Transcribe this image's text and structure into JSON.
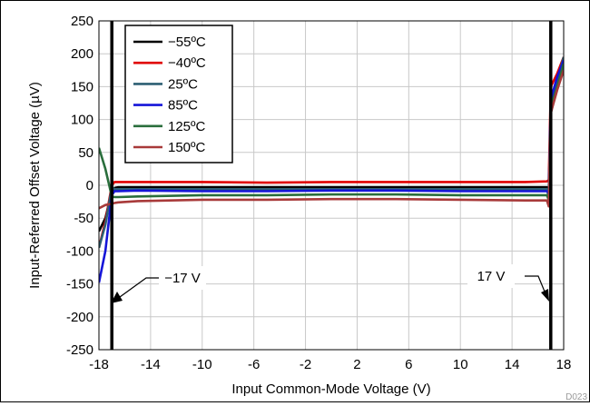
{
  "chart_data": {
    "type": "line",
    "title": "",
    "xlabel": "Input Common-Mode Voltage (V)",
    "ylabel": "Input-Referred Offset Voltage (µV)",
    "xlim": [
      -18,
      18
    ],
    "ylim": [
      -250,
      250
    ],
    "x_ticks": [
      "-18",
      "-14",
      "-10",
      "-6",
      "-2",
      "2",
      "6",
      "10",
      "14",
      "18"
    ],
    "x_tick_values": [
      -18,
      -14,
      -10,
      -6,
      -2,
      2,
      6,
      10,
      14,
      18
    ],
    "y_ticks": [
      "250",
      "200",
      "150",
      "100",
      "50",
      "0",
      "-50",
      "-100",
      "-150",
      "-200",
      "-250"
    ],
    "y_tick_values": [
      250,
      200,
      150,
      100,
      50,
      0,
      -50,
      -100,
      -150,
      -200,
      -250
    ],
    "grid": true,
    "legend_position": "top-left",
    "series": [
      {
        "name": "−55ºC",
        "color": "#000000",
        "x": [
          -18,
          -17.5,
          -17,
          -16.8,
          -16.5,
          -15,
          -10,
          -5,
          0,
          2,
          5,
          10,
          15,
          16.7,
          16.85,
          17,
          17.5,
          18
        ],
        "y": [
          -70,
          -50,
          -10,
          -4,
          -3,
          -3,
          -3,
          -3,
          -3,
          -3,
          -3,
          -3,
          -3,
          -3,
          -8,
          110,
          150,
          190
        ]
      },
      {
        "name": "−40ºC",
        "color": "#e00000",
        "x": [
          -18,
          -17.5,
          -17,
          -16.8,
          -16.5,
          -15,
          -10,
          -5,
          0,
          2,
          5,
          10,
          15,
          16.7,
          16.85,
          17,
          17.5,
          18
        ],
        "y": [
          -95,
          -55,
          0,
          5,
          5,
          5,
          5,
          4,
          5,
          5,
          5,
          5,
          5,
          6,
          8,
          150,
          170,
          195
        ]
      },
      {
        "name": "25ºC",
        "color": "#2d5f73",
        "x": [
          -18,
          -17.5,
          -17,
          -16.8,
          -16.5,
          -15,
          -10,
          -5,
          0,
          2,
          5,
          10,
          15,
          16.7,
          16.85,
          17,
          17.5,
          18
        ],
        "y": [
          -95,
          -60,
          -3,
          -6,
          -6,
          -6,
          -6,
          -6,
          -6,
          -6,
          -6,
          -6,
          -6,
          -6,
          -18,
          120,
          160,
          195
        ]
      },
      {
        "name": "85ºC",
        "color": "#1515d8",
        "x": [
          -18,
          -17.5,
          -17,
          -16.8,
          -16.5,
          -15,
          -10,
          -5,
          0,
          2,
          5,
          10,
          15,
          16.7,
          16.85,
          17,
          17.5,
          18
        ],
        "y": [
          -148,
          -100,
          -15,
          -9,
          -9,
          -8,
          -9,
          -9,
          -8,
          -8,
          -8,
          -9,
          -9,
          -9,
          -12,
          130,
          165,
          190
        ]
      },
      {
        "name": "125ºC",
        "color": "#2a6e3c",
        "x": [
          -18,
          -17.5,
          -17,
          -16.8,
          -16.5,
          -15,
          -10,
          -5,
          0,
          2,
          5,
          10,
          15,
          16.7,
          16.85,
          17,
          17.5,
          18
        ],
        "y": [
          57,
          25,
          -17,
          -18,
          -18,
          -17,
          -15,
          -15,
          -14,
          -14,
          -14,
          -15,
          -15,
          -15,
          -22,
          118,
          150,
          185
        ]
      },
      {
        "name": "150ºC",
        "color": "#a83a3a",
        "x": [
          -18,
          -17.5,
          -17,
          -16.8,
          -16.5,
          -15,
          -10,
          -5,
          0,
          2,
          5,
          10,
          15,
          16.7,
          16.85,
          17,
          17.5,
          18
        ],
        "y": [
          -35,
          -30,
          -28,
          -27,
          -26,
          -24,
          -22,
          -22,
          -21,
          -21,
          -21,
          -22,
          -23,
          -23,
          -32,
          110,
          145,
          175
        ]
      }
    ],
    "vertical_markers": [
      {
        "x": -17,
        "label": "−17 V",
        "color": "#000000"
      },
      {
        "x": 17,
        "label": "17 V",
        "color": "#000000"
      }
    ],
    "figure_code": "D023"
  }
}
